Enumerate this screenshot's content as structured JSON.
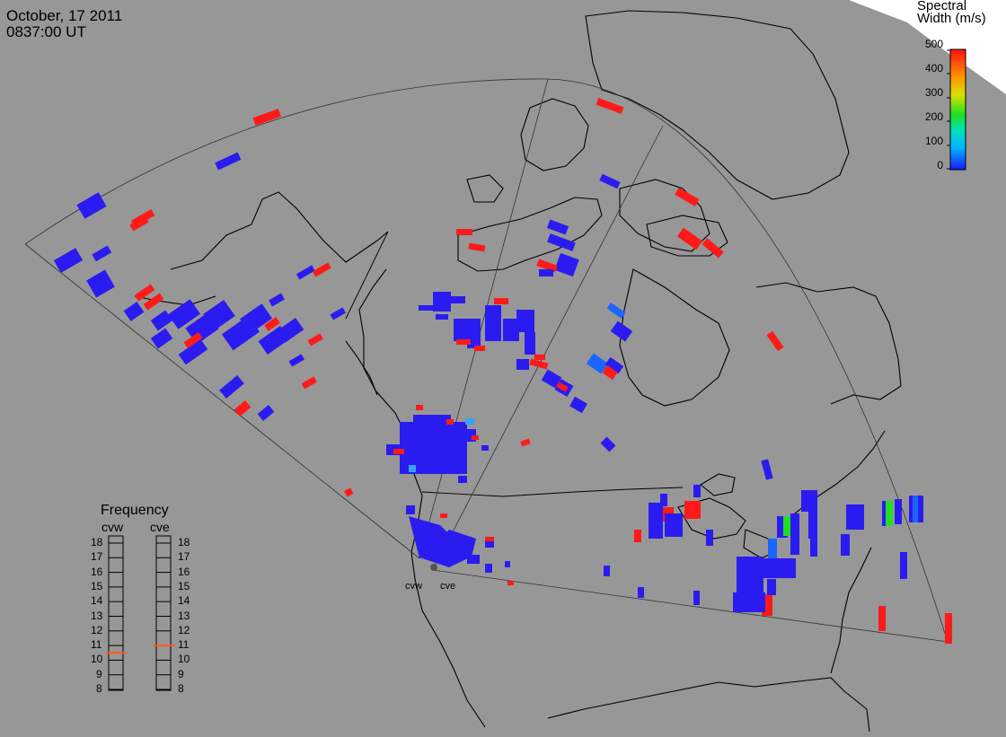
{
  "header": {
    "date": "October, 17 2011",
    "time": "0837:00 UT"
  },
  "colorbar": {
    "title_line1": "Spectral",
    "title_line2": "Width (m/s)",
    "ticks": [
      "500",
      "400",
      "300",
      "200",
      "100",
      "0"
    ]
  },
  "frequency_panel": {
    "title": "Frequency",
    "radars": [
      {
        "name": "cvw",
        "value_mhz": 10.5
      },
      {
        "name": "cve",
        "value_mhz": 11.0
      }
    ],
    "scale": [
      "18",
      "17",
      "16",
      "15",
      "14",
      "13",
      "12",
      "11",
      "10",
      "9",
      "8"
    ]
  },
  "radar_labels": [
    "cvw",
    "cve"
  ],
  "colors": {
    "background": "#979797",
    "ice": "#ffffff",
    "low_width": "#2a1cf0",
    "high_width": "#ff1a1a",
    "frequency_marker": "#ff5a1a"
  }
}
